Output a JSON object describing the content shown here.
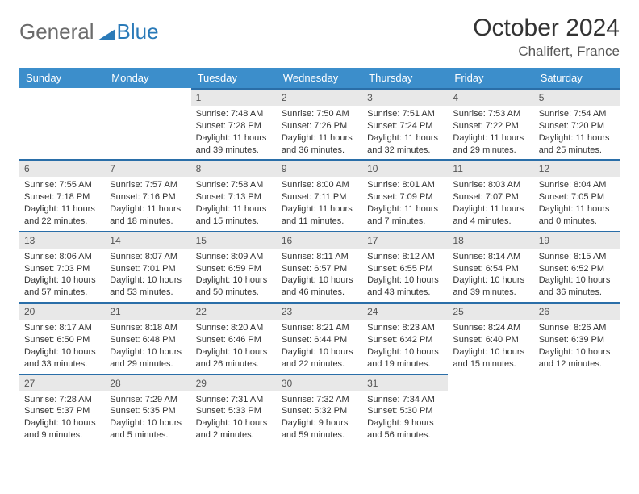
{
  "brand": {
    "part1": "General",
    "part2": "Blue"
  },
  "title": "October 2024",
  "location": "Chalifert, France",
  "colors": {
    "header_bg": "#3c8ecb",
    "header_text": "#ffffff",
    "daynum_bg": "#e8e8e8",
    "cell_border": "#2a6ea8",
    "brand_grey": "#6b6b6b",
    "brand_blue": "#2a7ab8"
  },
  "weekdays": [
    "Sunday",
    "Monday",
    "Tuesday",
    "Wednesday",
    "Thursday",
    "Friday",
    "Saturday"
  ],
  "weeks": [
    [
      {
        "blank": true
      },
      {
        "blank": true
      },
      {
        "n": "1",
        "sr": "Sunrise: 7:48 AM",
        "ss": "Sunset: 7:28 PM",
        "dl": "Daylight: 11 hours and 39 minutes."
      },
      {
        "n": "2",
        "sr": "Sunrise: 7:50 AM",
        "ss": "Sunset: 7:26 PM",
        "dl": "Daylight: 11 hours and 36 minutes."
      },
      {
        "n": "3",
        "sr": "Sunrise: 7:51 AM",
        "ss": "Sunset: 7:24 PM",
        "dl": "Daylight: 11 hours and 32 minutes."
      },
      {
        "n": "4",
        "sr": "Sunrise: 7:53 AM",
        "ss": "Sunset: 7:22 PM",
        "dl": "Daylight: 11 hours and 29 minutes."
      },
      {
        "n": "5",
        "sr": "Sunrise: 7:54 AM",
        "ss": "Sunset: 7:20 PM",
        "dl": "Daylight: 11 hours and 25 minutes."
      }
    ],
    [
      {
        "n": "6",
        "sr": "Sunrise: 7:55 AM",
        "ss": "Sunset: 7:18 PM",
        "dl": "Daylight: 11 hours and 22 minutes."
      },
      {
        "n": "7",
        "sr": "Sunrise: 7:57 AM",
        "ss": "Sunset: 7:16 PM",
        "dl": "Daylight: 11 hours and 18 minutes."
      },
      {
        "n": "8",
        "sr": "Sunrise: 7:58 AM",
        "ss": "Sunset: 7:13 PM",
        "dl": "Daylight: 11 hours and 15 minutes."
      },
      {
        "n": "9",
        "sr": "Sunrise: 8:00 AM",
        "ss": "Sunset: 7:11 PM",
        "dl": "Daylight: 11 hours and 11 minutes."
      },
      {
        "n": "10",
        "sr": "Sunrise: 8:01 AM",
        "ss": "Sunset: 7:09 PM",
        "dl": "Daylight: 11 hours and 7 minutes."
      },
      {
        "n": "11",
        "sr": "Sunrise: 8:03 AM",
        "ss": "Sunset: 7:07 PM",
        "dl": "Daylight: 11 hours and 4 minutes."
      },
      {
        "n": "12",
        "sr": "Sunrise: 8:04 AM",
        "ss": "Sunset: 7:05 PM",
        "dl": "Daylight: 11 hours and 0 minutes."
      }
    ],
    [
      {
        "n": "13",
        "sr": "Sunrise: 8:06 AM",
        "ss": "Sunset: 7:03 PM",
        "dl": "Daylight: 10 hours and 57 minutes."
      },
      {
        "n": "14",
        "sr": "Sunrise: 8:07 AM",
        "ss": "Sunset: 7:01 PM",
        "dl": "Daylight: 10 hours and 53 minutes."
      },
      {
        "n": "15",
        "sr": "Sunrise: 8:09 AM",
        "ss": "Sunset: 6:59 PM",
        "dl": "Daylight: 10 hours and 50 minutes."
      },
      {
        "n": "16",
        "sr": "Sunrise: 8:11 AM",
        "ss": "Sunset: 6:57 PM",
        "dl": "Daylight: 10 hours and 46 minutes."
      },
      {
        "n": "17",
        "sr": "Sunrise: 8:12 AM",
        "ss": "Sunset: 6:55 PM",
        "dl": "Daylight: 10 hours and 43 minutes."
      },
      {
        "n": "18",
        "sr": "Sunrise: 8:14 AM",
        "ss": "Sunset: 6:54 PM",
        "dl": "Daylight: 10 hours and 39 minutes."
      },
      {
        "n": "19",
        "sr": "Sunrise: 8:15 AM",
        "ss": "Sunset: 6:52 PM",
        "dl": "Daylight: 10 hours and 36 minutes."
      }
    ],
    [
      {
        "n": "20",
        "sr": "Sunrise: 8:17 AM",
        "ss": "Sunset: 6:50 PM",
        "dl": "Daylight: 10 hours and 33 minutes."
      },
      {
        "n": "21",
        "sr": "Sunrise: 8:18 AM",
        "ss": "Sunset: 6:48 PM",
        "dl": "Daylight: 10 hours and 29 minutes."
      },
      {
        "n": "22",
        "sr": "Sunrise: 8:20 AM",
        "ss": "Sunset: 6:46 PM",
        "dl": "Daylight: 10 hours and 26 minutes."
      },
      {
        "n": "23",
        "sr": "Sunrise: 8:21 AM",
        "ss": "Sunset: 6:44 PM",
        "dl": "Daylight: 10 hours and 22 minutes."
      },
      {
        "n": "24",
        "sr": "Sunrise: 8:23 AM",
        "ss": "Sunset: 6:42 PM",
        "dl": "Daylight: 10 hours and 19 minutes."
      },
      {
        "n": "25",
        "sr": "Sunrise: 8:24 AM",
        "ss": "Sunset: 6:40 PM",
        "dl": "Daylight: 10 hours and 15 minutes."
      },
      {
        "n": "26",
        "sr": "Sunrise: 8:26 AM",
        "ss": "Sunset: 6:39 PM",
        "dl": "Daylight: 10 hours and 12 minutes."
      }
    ],
    [
      {
        "n": "27",
        "sr": "Sunrise: 7:28 AM",
        "ss": "Sunset: 5:37 PM",
        "dl": "Daylight: 10 hours and 9 minutes."
      },
      {
        "n": "28",
        "sr": "Sunrise: 7:29 AM",
        "ss": "Sunset: 5:35 PM",
        "dl": "Daylight: 10 hours and 5 minutes."
      },
      {
        "n": "29",
        "sr": "Sunrise: 7:31 AM",
        "ss": "Sunset: 5:33 PM",
        "dl": "Daylight: 10 hours and 2 minutes."
      },
      {
        "n": "30",
        "sr": "Sunrise: 7:32 AM",
        "ss": "Sunset: 5:32 PM",
        "dl": "Daylight: 9 hours and 59 minutes."
      },
      {
        "n": "31",
        "sr": "Sunrise: 7:34 AM",
        "ss": "Sunset: 5:30 PM",
        "dl": "Daylight: 9 hours and 56 minutes."
      },
      {
        "blank": true
      },
      {
        "blank": true
      }
    ]
  ]
}
